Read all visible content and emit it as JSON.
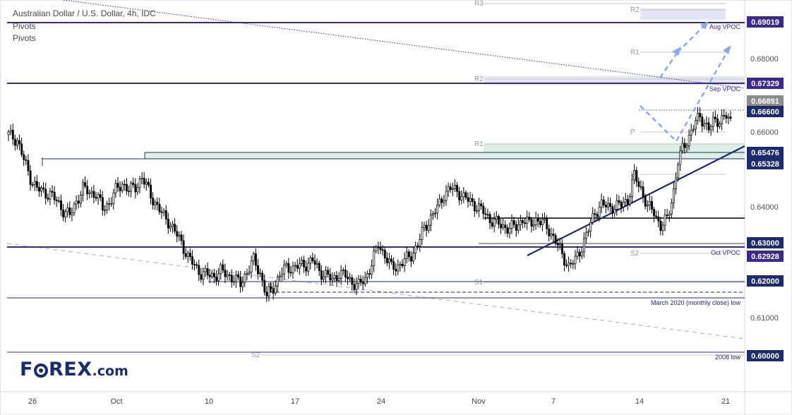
{
  "header": {
    "title": "Australian Dollar / U.S. Dollar, 4h, IDC",
    "indicators": [
      "Pivots",
      "Pivots"
    ]
  },
  "logo": {
    "brand_pre": "F",
    "brand_post": "REX",
    "tld": ".com"
  },
  "colors": {
    "up": "#000000",
    "down": "#000000",
    "purple": "#3b2a8c",
    "navy": "#1e2b6b",
    "green_zone": "#dcefe2",
    "pivot_zone": "#e3e7f5",
    "projection": "#8fa8ea",
    "price_tag": "#8c8c8c"
  },
  "chart_data": {
    "type": "candlestick",
    "symbol": "AUD/USD",
    "timeframe": "4h",
    "ylim": [
      0.594,
      0.703
    ],
    "x_tick_labels": [
      "26",
      "Oct",
      "10",
      "17",
      "24",
      "Nov",
      "7",
      "14",
      "21"
    ],
    "y_tick_labels": [
      "0.69019",
      "0.68000",
      "0.67329",
      "0.66891",
      "0.66600",
      "0.66000",
      "0.65476",
      "0.65328",
      "0.64000",
      "0.63000",
      "0.62928",
      "0.62000",
      "0.61000",
      "0.60000"
    ],
    "key_levels": [
      {
        "price": 0.69019,
        "label": "0.69019",
        "color": "purple"
      },
      {
        "price": 0.67329,
        "label": "0.67329",
        "color": "purple"
      },
      {
        "price": 0.66891,
        "label": "0.66891",
        "color": "gray"
      },
      {
        "price": 0.666,
        "label": "0.66600",
        "color": "navy"
      },
      {
        "price": 0.65476,
        "label": "0.65476",
        "color": "navy"
      },
      {
        "price": 0.65328,
        "label": "0.65328",
        "color": "navy"
      },
      {
        "price": 0.63,
        "label": "0.63000",
        "color": "navy"
      },
      {
        "price": 0.62928,
        "label": "0.62928",
        "color": "purple"
      },
      {
        "price": 0.62,
        "label": "0.62000",
        "color": "navy"
      },
      {
        "price": 0.6,
        "label": "0.60000",
        "color": "navy"
      }
    ],
    "annotations": [
      "Aug VPOC",
      "Sep VPOC",
      "Oct VPOC",
      "March 2020 (monthly close) low",
      "2008 low"
    ],
    "pivot_labels": [
      "R3",
      "R2",
      "R2",
      "R1",
      "R1",
      "P",
      "S1",
      "S1",
      "S2",
      "S2"
    ],
    "candle_count": 150,
    "candle_path": [
      [
        0,
        0.6655
      ],
      [
        4,
        0.664
      ],
      [
        7,
        0.6585
      ],
      [
        10,
        0.6535
      ],
      [
        13,
        0.6505
      ],
      [
        16,
        0.6495
      ],
      [
        19,
        0.649
      ],
      [
        22,
        0.647
      ],
      [
        25,
        0.6445
      ],
      [
        28,
        0.643
      ],
      [
        31,
        0.647
      ],
      [
        34,
        0.6505
      ],
      [
        37,
        0.6495
      ],
      [
        40,
        0.649
      ],
      [
        43,
        0.645
      ],
      [
        46,
        0.6465
      ],
      [
        49,
        0.65
      ],
      [
        52,
        0.652
      ],
      [
        55,
        0.65
      ],
      [
        58,
        0.651
      ],
      [
        61,
        0.6535
      ],
      [
        64,
        0.65
      ],
      [
        67,
        0.6465
      ],
      [
        70,
        0.6435
      ],
      [
        73,
        0.6415
      ],
      [
        76,
        0.6385
      ],
      [
        79,
        0.6355
      ],
      [
        82,
        0.6315
      ],
      [
        85,
        0.629
      ],
      [
        88,
        0.627
      ],
      [
        91,
        0.6265
      ],
      [
        94,
        0.6262
      ],
      [
        97,
        0.6275
      ],
      [
        100,
        0.6265
      ],
      [
        103,
        0.6255
      ],
      [
        106,
        0.624
      ],
      [
        109,
        0.6275
      ],
      [
        112,
        0.6305
      ],
      [
        115,
        0.627
      ],
      [
        118,
        0.6205
      ],
      [
        121,
        0.623
      ],
      [
        124,
        0.6265
      ],
      [
        127,
        0.6285
      ],
      [
        130,
        0.6285
      ],
      [
        133,
        0.629
      ],
      [
        136,
        0.6295
      ],
      [
        139,
        0.6305
      ],
      [
        142,
        0.6275
      ],
      [
        145,
        0.6265
      ],
      [
        148,
        0.625
      ],
      [
        151,
        0.627
      ],
      [
        154,
        0.6262
      ],
      [
        157,
        0.6245
      ],
      [
        160,
        0.6235
      ],
      [
        163,
        0.6255
      ],
      [
        166,
        0.6295
      ],
      [
        169,
        0.635
      ],
      [
        172,
        0.632
      ],
      [
        175,
        0.6285
      ],
      [
        178,
        0.629
      ],
      [
        181,
        0.6305
      ],
      [
        184,
        0.632
      ],
      [
        187,
        0.635
      ],
      [
        190,
        0.6395
      ],
      [
        193,
        0.6425
      ],
      [
        196,
        0.645
      ],
      [
        199,
        0.649
      ],
      [
        202,
        0.6505
      ],
      [
        205,
        0.65
      ],
      [
        208,
        0.648
      ],
      [
        211,
        0.647
      ],
      [
        214,
        0.6455
      ],
      [
        217,
        0.644
      ],
      [
        220,
        0.642
      ],
      [
        223,
        0.641
      ],
      [
        226,
        0.64
      ],
      [
        229,
        0.6395
      ],
      [
        232,
        0.64
      ],
      [
        235,
        0.642
      ],
      [
        238,
        0.6405
      ],
      [
        241,
        0.642
      ],
      [
        244,
        0.641
      ],
      [
        247,
        0.639
      ],
      [
        250,
        0.636
      ],
      [
        253,
        0.632
      ],
      [
        256,
        0.629
      ],
      [
        259,
        0.6305
      ],
      [
        262,
        0.6345
      ],
      [
        265,
        0.639
      ],
      [
        268,
        0.644
      ],
      [
        271,
        0.646
      ],
      [
        274,
        0.6455
      ],
      [
        277,
        0.6455
      ],
      [
        280,
        0.646
      ],
      [
        283,
        0.6475
      ],
      [
        286,
        0.654
      ],
      [
        289,
        0.6505
      ],
      [
        292,
        0.6455
      ],
      [
        295,
        0.644
      ],
      [
        298,
        0.64
      ],
      [
        301,
        0.642
      ],
      [
        304,
        0.65
      ],
      [
        306,
        0.658
      ],
      [
        308,
        0.6615
      ],
      [
        310,
        0.664
      ],
      [
        312,
        0.6665
      ],
      [
        314,
        0.669
      ],
      [
        316,
        0.6705
      ],
      [
        318,
        0.669
      ],
      [
        320,
        0.667
      ],
      [
        322,
        0.669
      ],
      [
        324,
        0.6695
      ],
      [
        326,
        0.67
      ],
      [
        328,
        0.6705
      ],
      [
        330,
        0.669
      ]
    ]
  }
}
